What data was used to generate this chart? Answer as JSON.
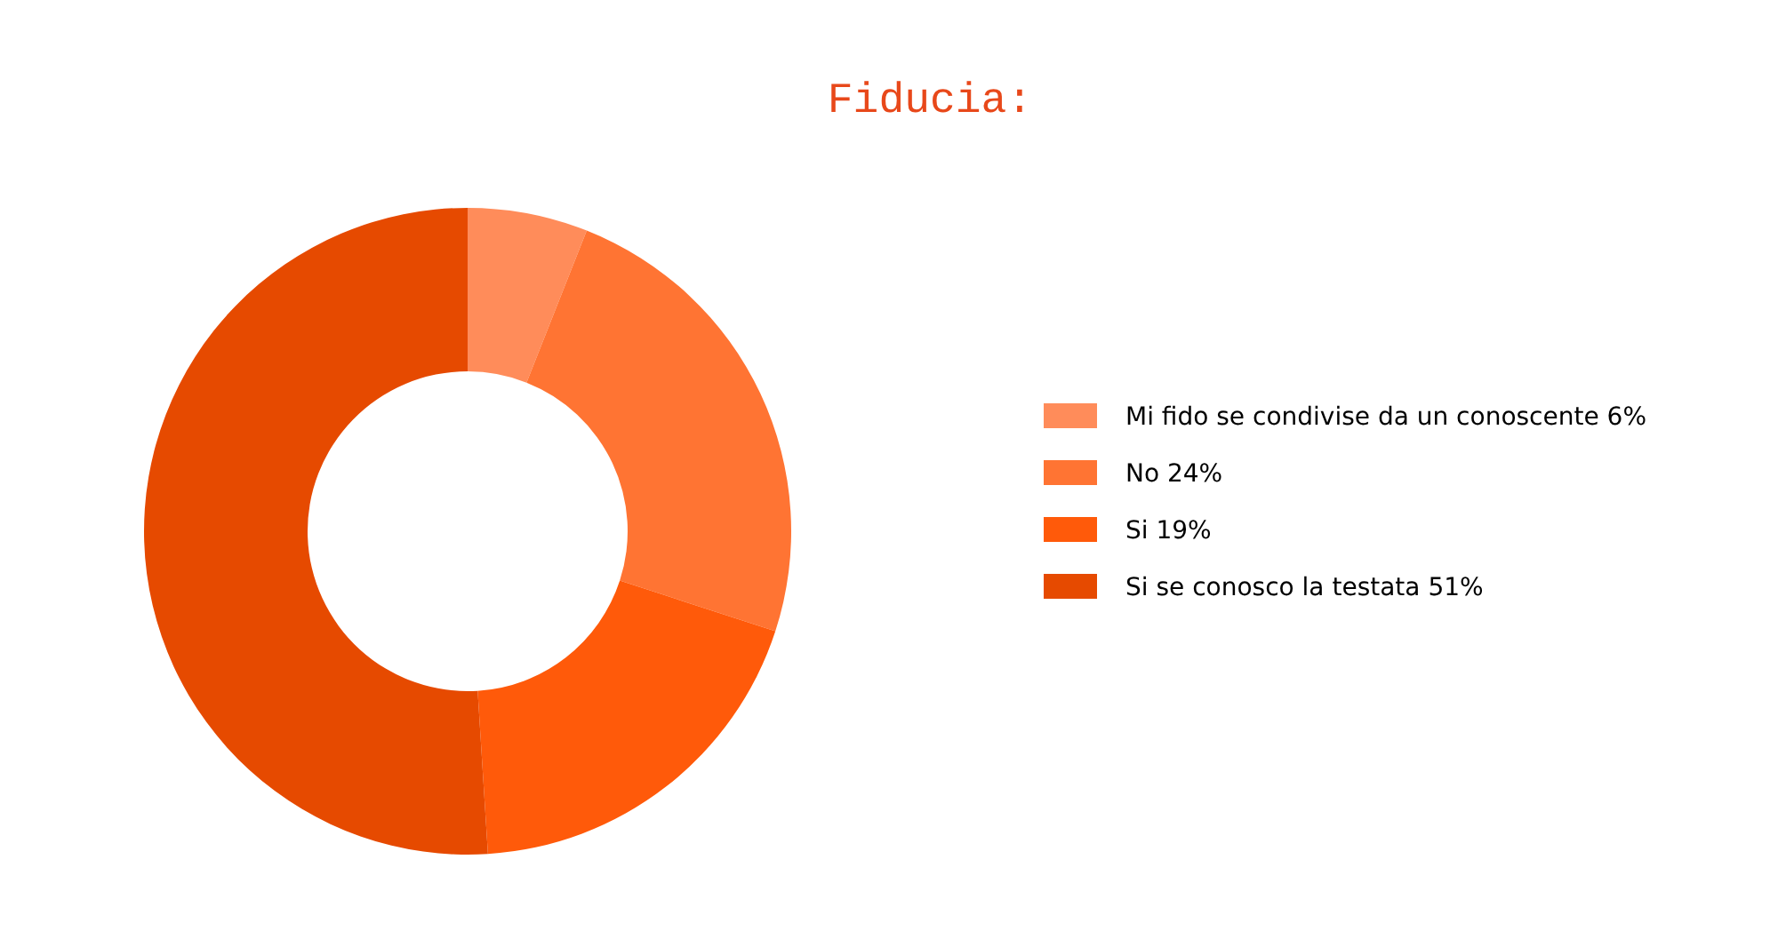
{
  "chart_data": {
    "type": "donut",
    "title": "Fiducia:",
    "categories": [
      "Mi fido se condivise da un conoscente 6%",
      "No 24%",
      "Si 19%",
      "Si se conosco la testata 51%"
    ],
    "values": [
      6,
      24,
      19,
      51
    ],
    "colors": [
      "#ff8c5a",
      "#ff7433",
      "#ff5a0a",
      "#e64a00"
    ],
    "legend": "right"
  }
}
